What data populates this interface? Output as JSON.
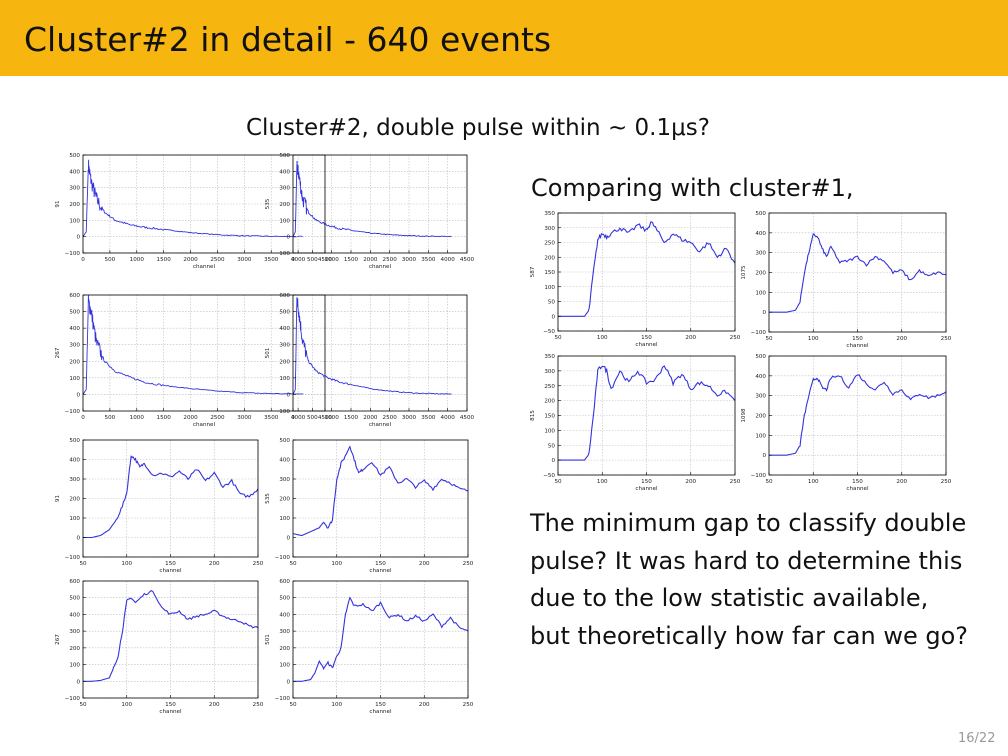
{
  "slide": {
    "title": "Cluster#2 in detail - 640 events",
    "subtitle": "Cluster#2, double pulse within ∼ 0.1μs?",
    "comparing": "Comparing with cluster#1,",
    "question": "The minimum gap to classify double pulse? It was hard to determine this due to the low statistic available, but theoretically how far can we go?",
    "page_number": "16/22"
  },
  "colors": {
    "header_bar": "#f7b60f",
    "trace": "#3333dd",
    "grid": "#bbbbbb"
  },
  "chart_data": [
    {
      "id": "c2_full_91",
      "type": "line",
      "ylabel": "91",
      "xlabel": "channel",
      "xlim": [
        0,
        4500
      ],
      "ylim": [
        -100,
        500
      ],
      "xticks": [
        0,
        500,
        1000,
        1500,
        2000,
        2500,
        3000,
        3500,
        4000,
        4500
      ],
      "yticks": [
        -100,
        0,
        100,
        200,
        300,
        400,
        500
      ],
      "shape": "decay",
      "series": [
        {
          "x": [
            0,
            60,
            100,
            150,
            250,
            400,
            600,
            900,
            1200,
            1600,
            2000,
            2500,
            3000,
            3500,
            4100
          ],
          "y": [
            0,
            30,
            440,
            340,
            230,
            150,
            100,
            70,
            55,
            40,
            25,
            12,
            5,
            2,
            0
          ]
        }
      ]
    },
    {
      "id": "c2_full_535",
      "type": "line",
      "ylabel": "535",
      "xlabel": "channel",
      "xlim": [
        0,
        4500
      ],
      "ylim": [
        -100,
        500
      ],
      "xticks": [
        0,
        500,
        1000,
        1500,
        2000,
        2500,
        3000,
        3500,
        4000,
        4500
      ],
      "yticks": [
        -100,
        0,
        100,
        200,
        300,
        400,
        500
      ],
      "shape": "decay",
      "series": [
        {
          "x": [
            0,
            60,
            100,
            150,
            250,
            400,
            600,
            900,
            1200,
            1600,
            2000,
            2500,
            3000,
            3500,
            4100
          ],
          "y": [
            0,
            30,
            430,
            380,
            230,
            150,
            100,
            70,
            50,
            35,
            22,
            12,
            6,
            3,
            1
          ]
        }
      ]
    },
    {
      "id": "c2_full_267",
      "type": "line",
      "ylabel": "267",
      "xlabel": "channel",
      "xlim": [
        0,
        4500
      ],
      "ylim": [
        -100,
        600
      ],
      "xticks": [
        0,
        500,
        1000,
        1500,
        2000,
        2500,
        3000,
        3500,
        4000,
        4500
      ],
      "yticks": [
        -100,
        0,
        100,
        200,
        300,
        400,
        500,
        600
      ],
      "shape": "decay",
      "series": [
        {
          "x": [
            0,
            60,
            100,
            150,
            250,
            400,
            600,
            900,
            1200,
            1600,
            2000,
            2500,
            3000,
            3500,
            4100
          ],
          "y": [
            0,
            30,
            560,
            500,
            310,
            200,
            140,
            100,
            70,
            50,
            35,
            20,
            10,
            5,
            2
          ]
        }
      ]
    },
    {
      "id": "c2_full_501",
      "type": "line",
      "ylabel": "501",
      "xlabel": "channel",
      "xlim": [
        0,
        4500
      ],
      "ylim": [
        -100,
        600
      ],
      "xticks": [
        0,
        500,
        1000,
        1500,
        2000,
        2500,
        3000,
        3500,
        4000,
        4500
      ],
      "yticks": [
        -100,
        0,
        100,
        200,
        300,
        400,
        500,
        600
      ],
      "shape": "decay",
      "series": [
        {
          "x": [
            0,
            60,
            100,
            150,
            250,
            400,
            600,
            900,
            1200,
            1600,
            2000,
            2500,
            3000,
            3500,
            4100
          ],
          "y": [
            0,
            30,
            580,
            500,
            320,
            200,
            140,
            100,
            75,
            55,
            35,
            20,
            10,
            5,
            2
          ]
        }
      ]
    },
    {
      "id": "c2_zoom_91",
      "type": "line",
      "ylabel": "91",
      "xlabel": "channel",
      "xlim": [
        50,
        250
      ],
      "ylim": [
        -100,
        500
      ],
      "xticks": [
        50,
        100,
        150,
        200,
        250
      ],
      "yticks": [
        -100,
        0,
        100,
        200,
        300,
        400,
        500
      ],
      "series": [
        {
          "x": [
            50,
            60,
            70,
            80,
            88,
            95,
            100,
            105,
            110,
            115,
            120,
            130,
            140,
            150,
            160,
            170,
            180,
            190,
            200,
            210,
            220,
            230,
            240,
            250
          ],
          "y": [
            0,
            0,
            10,
            40,
            90,
            160,
            230,
            420,
            400,
            360,
            380,
            320,
            330,
            310,
            340,
            300,
            350,
            290,
            330,
            260,
            290,
            220,
            210,
            250
          ]
        }
      ]
    },
    {
      "id": "c2_zoom_535",
      "type": "line",
      "ylabel": "535",
      "xlabel": "channel",
      "xlim": [
        50,
        250
      ],
      "ylim": [
        -100,
        500
      ],
      "xticks": [
        50,
        100,
        150,
        200,
        250
      ],
      "yticks": [
        -100,
        0,
        100,
        200,
        300,
        400,
        500
      ],
      "series": [
        {
          "x": [
            50,
            60,
            70,
            80,
            85,
            90,
            95,
            100,
            105,
            110,
            115,
            120,
            125,
            130,
            140,
            150,
            160,
            170,
            180,
            190,
            200,
            210,
            220,
            230,
            240,
            250
          ],
          "y": [
            20,
            10,
            30,
            50,
            80,
            50,
            90,
            300,
            380,
            420,
            470,
            400,
            330,
            350,
            390,
            320,
            360,
            280,
            300,
            260,
            290,
            250,
            300,
            280,
            250,
            240
          ]
        }
      ]
    },
    {
      "id": "c2_zoom_267",
      "type": "line",
      "ylabel": "267",
      "xlabel": "channel",
      "xlim": [
        50,
        250
      ],
      "ylim": [
        -100,
        600
      ],
      "xticks": [
        50,
        100,
        150,
        200,
        250
      ],
      "yticks": [
        -100,
        0,
        100,
        200,
        300,
        400,
        500,
        600
      ],
      "series": [
        {
          "x": [
            50,
            60,
            70,
            80,
            85,
            90,
            95,
            100,
            105,
            110,
            120,
            130,
            140,
            150,
            160,
            170,
            180,
            190,
            200,
            210,
            220,
            230,
            240,
            250
          ],
          "y": [
            0,
            0,
            5,
            20,
            80,
            150,
            300,
            480,
            500,
            470,
            520,
            540,
            440,
            400,
            420,
            370,
            390,
            400,
            420,
            390,
            370,
            360,
            330,
            320
          ]
        }
      ]
    },
    {
      "id": "c2_zoom_501",
      "type": "line",
      "ylabel": "501",
      "xlabel": "channel",
      "xlim": [
        50,
        250
      ],
      "ylim": [
        -100,
        600
      ],
      "xticks": [
        50,
        100,
        150,
        200,
        250
      ],
      "yticks": [
        -100,
        0,
        100,
        200,
        300,
        400,
        500,
        600
      ],
      "series": [
        {
          "x": [
            50,
            60,
            70,
            75,
            80,
            85,
            90,
            95,
            100,
            105,
            110,
            115,
            120,
            130,
            140,
            150,
            160,
            170,
            180,
            190,
            200,
            210,
            220,
            230,
            240,
            250
          ],
          "y": [
            0,
            0,
            10,
            50,
            120,
            80,
            110,
            80,
            150,
            200,
            400,
            500,
            450,
            460,
            420,
            470,
            380,
            400,
            360,
            390,
            360,
            400,
            330,
            380,
            320,
            300
          ]
        }
      ]
    },
    {
      "id": "c1_zoom_587",
      "type": "line",
      "ylabel": "587",
      "xlabel": "channel",
      "xlim": [
        50,
        250
      ],
      "ylim": [
        -50,
        350
      ],
      "xticks": [
        50,
        100,
        150,
        200,
        250
      ],
      "yticks": [
        -50,
        0,
        50,
        100,
        150,
        200,
        250,
        300,
        350
      ],
      "series": [
        {
          "x": [
            50,
            60,
            70,
            80,
            85,
            90,
            95,
            100,
            105,
            110,
            120,
            130,
            140,
            150,
            155,
            160,
            170,
            180,
            190,
            200,
            210,
            220,
            230,
            240,
            250
          ],
          "y": [
            0,
            0,
            0,
            0,
            20,
            150,
            260,
            280,
            270,
            280,
            300,
            280,
            310,
            290,
            320,
            300,
            250,
            280,
            260,
            250,
            220,
            250,
            200,
            230,
            180
          ]
        }
      ]
    },
    {
      "id": "c1_zoom_1075",
      "type": "line",
      "ylabel": "1075",
      "xlabel": "channel",
      "xlim": [
        50,
        250
      ],
      "ylim": [
        -100,
        500
      ],
      "xticks": [
        50,
        100,
        150,
        200,
        250
      ],
      "yticks": [
        -100,
        0,
        100,
        200,
        300,
        400,
        500
      ],
      "series": [
        {
          "x": [
            50,
            60,
            70,
            80,
            85,
            90,
            95,
            100,
            105,
            110,
            115,
            120,
            130,
            140,
            150,
            160,
            170,
            180,
            190,
            200,
            210,
            220,
            230,
            240,
            250
          ],
          "y": [
            0,
            0,
            0,
            10,
            50,
            200,
            300,
            390,
            380,
            320,
            280,
            330,
            250,
            260,
            280,
            240,
            280,
            260,
            200,
            210,
            160,
            210,
            180,
            200,
            190
          ]
        }
      ]
    },
    {
      "id": "c1_zoom_815",
      "type": "line",
      "ylabel": "815",
      "xlabel": "channel",
      "xlim": [
        50,
        250
      ],
      "ylim": [
        -50,
        350
      ],
      "xticks": [
        50,
        100,
        150,
        200,
        250
      ],
      "yticks": [
        -50,
        0,
        50,
        100,
        150,
        200,
        250,
        300,
        350
      ],
      "series": [
        {
          "x": [
            50,
            60,
            70,
            80,
            85,
            90,
            95,
            100,
            105,
            110,
            120,
            130,
            140,
            150,
            160,
            170,
            180,
            190,
            200,
            210,
            220,
            230,
            240,
            250
          ],
          "y": [
            0,
            0,
            0,
            0,
            20,
            150,
            300,
            320,
            300,
            240,
            300,
            260,
            300,
            260,
            270,
            320,
            260,
            290,
            240,
            260,
            250,
            220,
            230,
            200
          ]
        }
      ]
    },
    {
      "id": "c1_zoom_1098",
      "type": "line",
      "ylabel": "1098",
      "xlabel": "channel",
      "xlim": [
        50,
        250
      ],
      "ylim": [
        -100,
        500
      ],
      "xticks": [
        50,
        100,
        150,
        200,
        250
      ],
      "yticks": [
        -100,
        0,
        100,
        200,
        300,
        400,
        500
      ],
      "series": [
        {
          "x": [
            50,
            60,
            70,
            80,
            85,
            90,
            95,
            100,
            105,
            110,
            115,
            120,
            130,
            140,
            150,
            160,
            170,
            180,
            190,
            200,
            210,
            220,
            230,
            240,
            250
          ],
          "y": [
            0,
            0,
            0,
            10,
            50,
            200,
            300,
            380,
            390,
            340,
            330,
            390,
            400,
            340,
            410,
            360,
            330,
            370,
            310,
            330,
            280,
            310,
            290,
            300,
            320
          ]
        }
      ]
    }
  ]
}
